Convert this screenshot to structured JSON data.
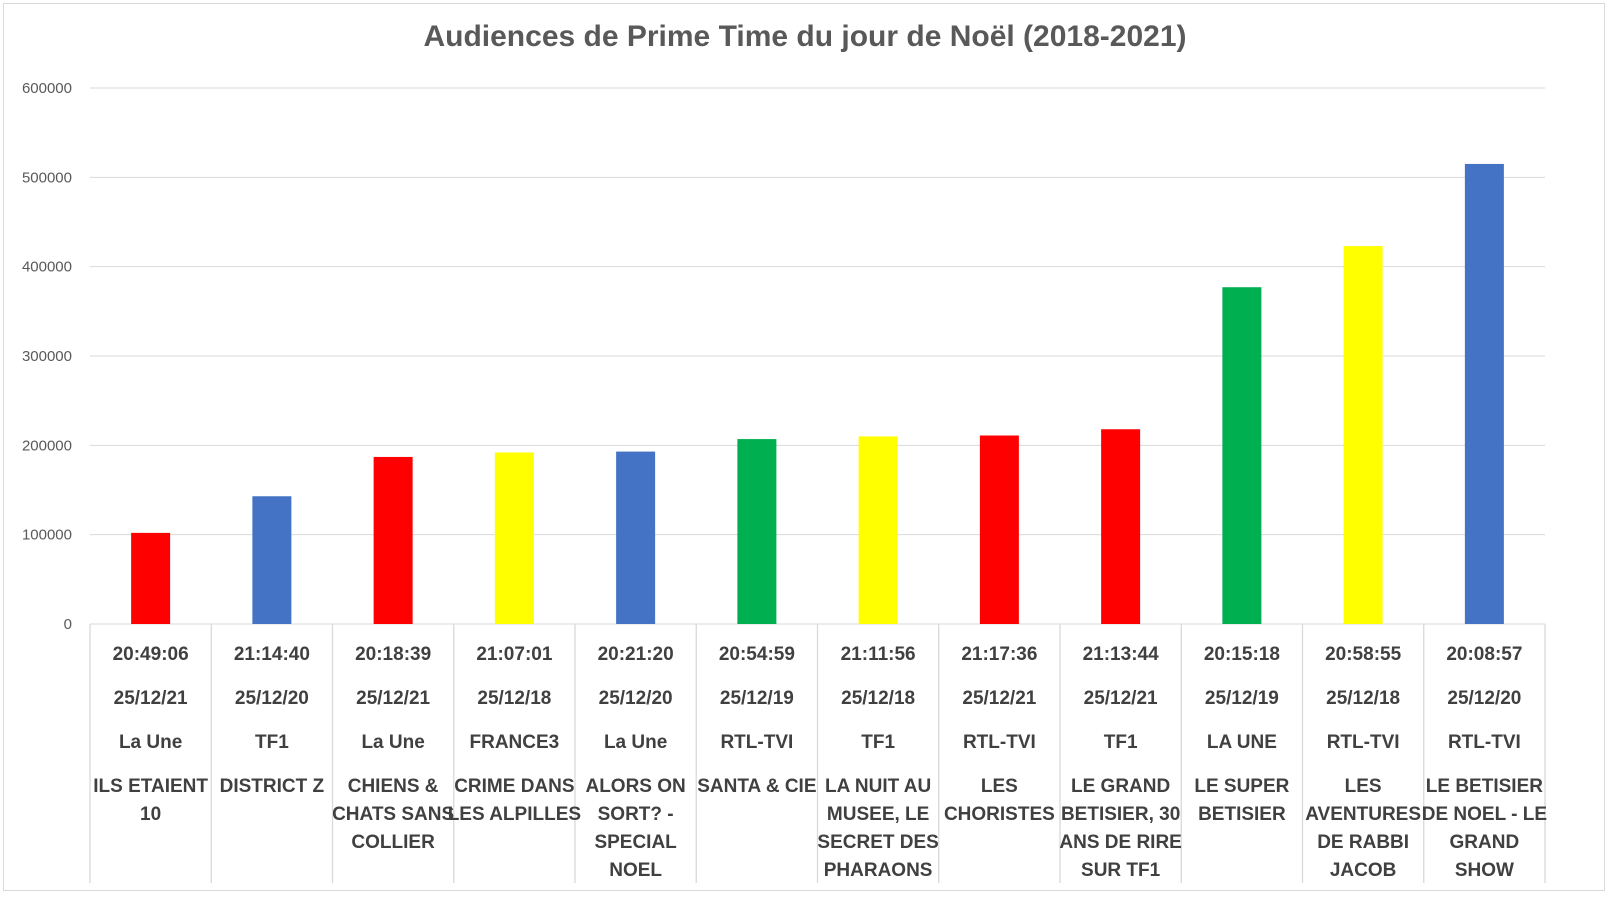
{
  "chart_data": {
    "type": "bar",
    "title": "Audiences de Prime Time du jour de Noël (2018-2021)",
    "xlabel": "",
    "ylabel": "",
    "ylim": [
      0,
      600000
    ],
    "yticks": [
      0,
      100000,
      200000,
      300000,
      400000,
      500000,
      600000
    ],
    "ytick_labels": [
      "0",
      "100000",
      "200000",
      "300000",
      "400000",
      "500000",
      "600000"
    ],
    "grid": true,
    "legend": "none",
    "categories": [
      {
        "time": "20:49:06",
        "date": "25/12/21",
        "channel": "La Une",
        "program": [
          "ILS ETAIENT",
          "10"
        ]
      },
      {
        "time": "21:14:40",
        "date": "25/12/20",
        "channel": "TF1",
        "program": [
          "DISTRICT Z"
        ]
      },
      {
        "time": "20:18:39",
        "date": "25/12/21",
        "channel": "La Une",
        "program": [
          "CHIENS &",
          "CHATS SANS",
          "COLLIER"
        ]
      },
      {
        "time": "21:07:01",
        "date": "25/12/18",
        "channel": "FRANCE3",
        "program": [
          "CRIME DANS",
          "LES ALPILLES"
        ]
      },
      {
        "time": "20:21:20",
        "date": "25/12/20",
        "channel": "La Une",
        "program": [
          "ALORS ON",
          "SORT? -",
          "SPECIAL",
          "NOEL"
        ]
      },
      {
        "time": "20:54:59",
        "date": "25/12/19",
        "channel": "RTL-TVI",
        "program": [
          "SANTA & CIE"
        ]
      },
      {
        "time": "21:11:56",
        "date": "25/12/18",
        "channel": "TF1",
        "program": [
          "LA NUIT AU",
          "MUSEE, LE",
          "SECRET DES",
          "PHARAONS"
        ]
      },
      {
        "time": "21:17:36",
        "date": "25/12/21",
        "channel": "RTL-TVI",
        "program": [
          "LES",
          "CHORISTES"
        ]
      },
      {
        "time": "21:13:44",
        "date": "25/12/21",
        "channel": "TF1",
        "program": [
          "LE GRAND",
          "BETISIER, 30",
          "ANS DE RIRE",
          "SUR TF1"
        ]
      },
      {
        "time": "20:15:18",
        "date": "25/12/19",
        "channel": "LA UNE",
        "program": [
          "LE SUPER",
          "BETISIER"
        ]
      },
      {
        "time": "20:58:55",
        "date": "25/12/18",
        "channel": "RTL-TVI",
        "program": [
          "LES",
          "AVENTURES",
          "DE RABBI",
          "JACOB"
        ]
      },
      {
        "time": "20:08:57",
        "date": "25/12/20",
        "channel": "RTL-TVI",
        "program": [
          "LE BETISIER",
          "DE NOEL - LE",
          "GRAND",
          "SHOW"
        ]
      }
    ],
    "values": [
      102000,
      143000,
      187000,
      192000,
      193000,
      207000,
      210000,
      211000,
      218000,
      377000,
      423000,
      515000
    ],
    "colors": [
      "#ff0000",
      "#4472c4",
      "#ff0000",
      "#ffff00",
      "#4472c4",
      "#00b050",
      "#ffff00",
      "#ff0000",
      "#ff0000",
      "#00b050",
      "#ffff00",
      "#4472c4"
    ],
    "gridline_color": "#d9d9d9"
  }
}
